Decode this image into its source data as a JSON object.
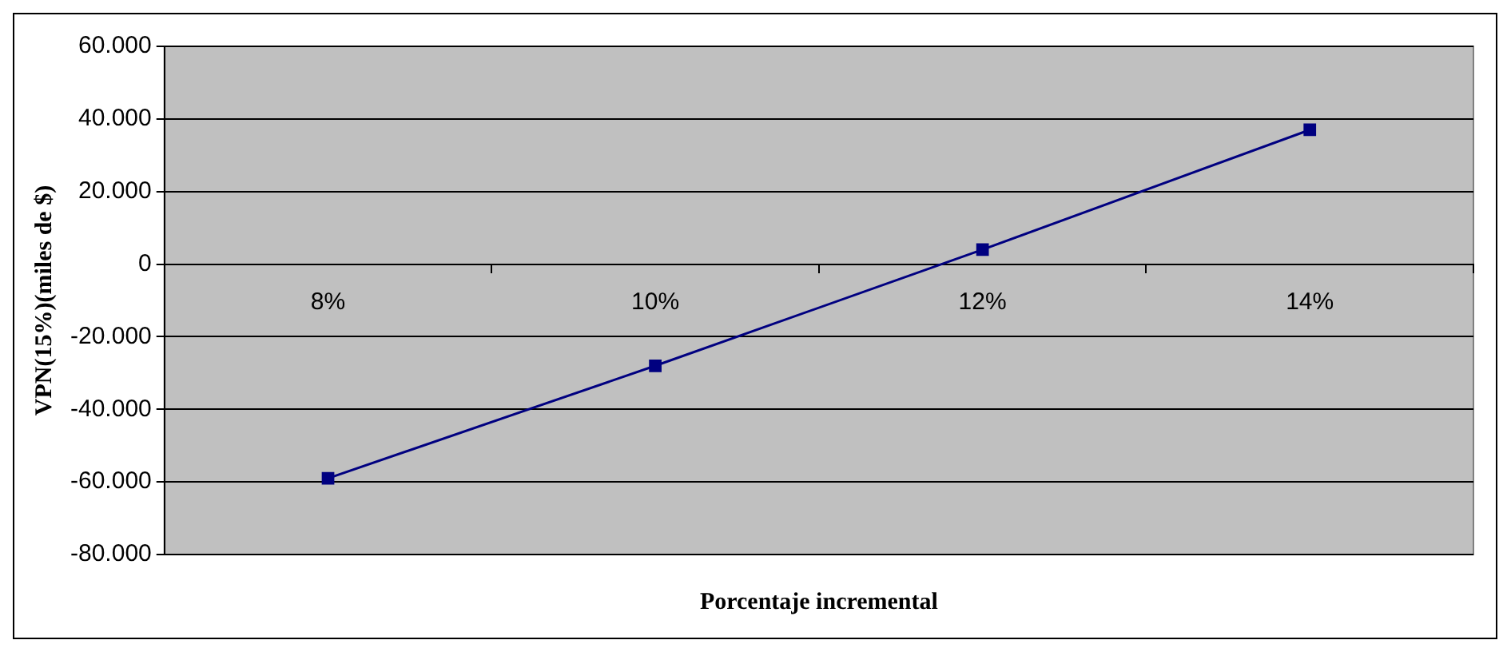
{
  "chart_data": {
    "type": "line",
    "xlabel": "Porcentaje incremental",
    "ylabel": "VPN(15%)(miles de $)",
    "categories": [
      "8%",
      "10%",
      "12%",
      "14%"
    ],
    "series": [
      {
        "color": "#000080",
        "values": [
          -59000,
          -28000,
          4000,
          37000
        ]
      }
    ],
    "ylim": [
      -80000,
      60000
    ],
    "yticks": [
      {
        "value": -80000,
        "label": "-80.000"
      },
      {
        "value": -60000,
        "label": "-60.000"
      },
      {
        "value": -40000,
        "label": "-40.000"
      },
      {
        "value": -20000,
        "label": "-20.000"
      },
      0,
      {
        "value": 20000,
        "label": "20.000"
      },
      {
        "value": 40000,
        "label": "40.000"
      },
      {
        "value": 60000,
        "label": "60.000"
      }
    ],
    "grid": "y",
    "legend": false,
    "marker": "square",
    "line_style": "solid"
  }
}
